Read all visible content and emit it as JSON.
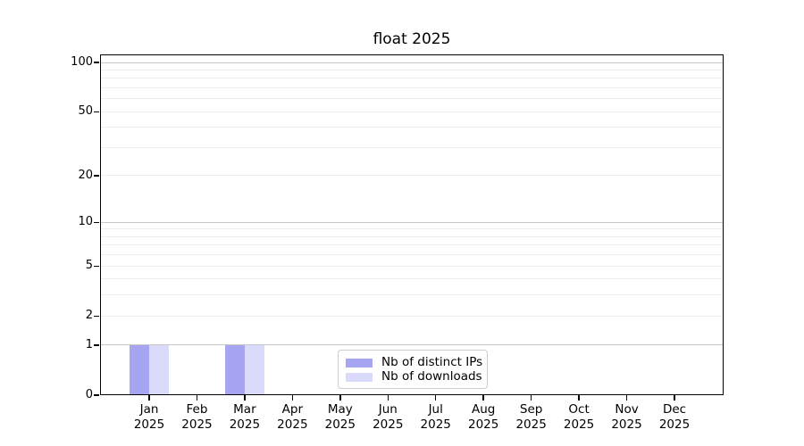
{
  "chart_data": {
    "type": "bar",
    "title": "float 2025",
    "categories": [
      "Jan",
      "Feb",
      "Mar",
      "Apr",
      "May",
      "Jun",
      "Jul",
      "Aug",
      "Sep",
      "Oct",
      "Nov",
      "Dec"
    ],
    "x_year_label": "2025",
    "series": [
      {
        "name": "Nb of distinct IPs",
        "color": "#a5a5f2",
        "values": [
          1,
          0,
          1,
          0,
          0,
          0,
          0,
          0,
          0,
          0,
          0,
          0
        ]
      },
      {
        "name": "Nb of downloads",
        "color": "#dadafa",
        "values": [
          1,
          0,
          1,
          0,
          0,
          0,
          0,
          0,
          0,
          0,
          0,
          0
        ]
      }
    ],
    "y_axis": {
      "scale": "log1p",
      "tick_labels": [
        0,
        1,
        2,
        5,
        10,
        20,
        50,
        100
      ],
      "gridlines_major": [
        1,
        10,
        100
      ],
      "gridlines_minor": [
        2,
        3,
        4,
        5,
        6,
        7,
        8,
        9,
        20,
        30,
        40,
        50,
        60,
        70,
        80,
        90
      ],
      "range": [
        0,
        112
      ]
    },
    "legend_position": "lower center",
    "colors": {
      "major_grid": "#c6c6c6",
      "minor_grid": "#ededed",
      "axis": "#000000",
      "background": "#ffffff"
    }
  }
}
